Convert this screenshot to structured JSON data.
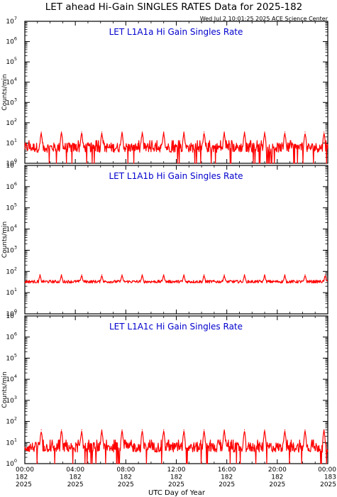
{
  "page": {
    "title": "LET ahead Hi-Gain SINGLES RATES Data for 2025-182",
    "timestamp": "Wed Jul  2 10:01:25 2025 ACE Science Center",
    "xlabel": "UTC Day of Year"
  },
  "colors": {
    "line": "#ff0000",
    "panel_title": "#0000cc",
    "axes": "#000000",
    "background": "#ffffff"
  },
  "chart_data": [
    {
      "type": "line",
      "title": "LET L1A1a Hi Gain Singles Rate",
      "ylabel": "Counts/min",
      "yscale": "log",
      "ylim": [
        1,
        10000000
      ],
      "y_tick_labels": [
        {
          "base": "10",
          "exp": "0"
        },
        {
          "base": "10",
          "exp": "1"
        },
        {
          "base": "10",
          "exp": "2"
        },
        {
          "base": "10",
          "exp": "3"
        },
        {
          "base": "10",
          "exp": "4"
        },
        {
          "base": "10",
          "exp": "5"
        },
        {
          "base": "10",
          "exp": "6"
        },
        {
          "base": "10",
          "exp": "7"
        }
      ],
      "x_unit": "hour UTC",
      "xlim": [
        0,
        24
      ],
      "baseline_counts": 6,
      "spike_peak_counts": 35,
      "spike_hours": [
        1.3,
        2.9,
        4.5,
        6.1,
        7.7,
        9.3,
        11.0,
        12.6,
        14.2,
        15.8,
        17.4,
        19.0,
        20.6,
        22.2,
        23.7
      ]
    },
    {
      "type": "line",
      "title": "LET L1A1b Hi Gain Singles Rate",
      "ylabel": "Counts/min",
      "yscale": "log",
      "ylim": [
        1,
        10000000
      ],
      "y_tick_labels": [
        {
          "base": "10",
          "exp": "0"
        },
        {
          "base": "10",
          "exp": "1"
        },
        {
          "base": "10",
          "exp": "2"
        },
        {
          "base": "10",
          "exp": "3"
        },
        {
          "base": "10",
          "exp": "4"
        },
        {
          "base": "10",
          "exp": "5"
        },
        {
          "base": "10",
          "exp": "6"
        },
        {
          "base": "10",
          "exp": "7"
        }
      ],
      "x_unit": "hour UTC",
      "xlim": [
        0,
        24
      ],
      "baseline_counts": 33,
      "spike_peak_counts": 70,
      "spike_hours": [
        1.2,
        2.9,
        4.5,
        6.1,
        7.7,
        9.3,
        11.0,
        12.6,
        14.2,
        15.8,
        17.4,
        19.0,
        20.6,
        22.2,
        23.8
      ]
    },
    {
      "type": "line",
      "title": "LET L1A1c Hi Gain Singles Rate",
      "ylabel": "Counts/min",
      "yscale": "log",
      "ylim": [
        1,
        10000000
      ],
      "y_tick_labels": [
        {
          "base": "10",
          "exp": "0"
        },
        {
          "base": "10",
          "exp": "1"
        },
        {
          "base": "10",
          "exp": "2"
        },
        {
          "base": "10",
          "exp": "3"
        },
        {
          "base": "10",
          "exp": "4"
        },
        {
          "base": "10",
          "exp": "5"
        },
        {
          "base": "10",
          "exp": "6"
        },
        {
          "base": "10",
          "exp": "7"
        }
      ],
      "x_unit": "hour UTC",
      "xlim": [
        0,
        24
      ],
      "baseline_counts": 6,
      "spike_peak_counts": 40,
      "spike_hours": [
        1.3,
        2.9,
        4.5,
        6.1,
        7.7,
        9.3,
        11.0,
        12.6,
        14.2,
        15.8,
        17.4,
        19.0,
        20.6,
        22.2,
        23.7
      ]
    }
  ],
  "x_ticks": [
    {
      "hour": 0,
      "time": "00:00",
      "doy": "182",
      "year": "2025"
    },
    {
      "hour": 4,
      "time": "04:00",
      "doy": "182",
      "year": "2025"
    },
    {
      "hour": 8,
      "time": "08:00",
      "doy": "182",
      "year": "2025"
    },
    {
      "hour": 12,
      "time": "12:00",
      "doy": "182",
      "year": "2025"
    },
    {
      "hour": 16,
      "time": "16:00",
      "doy": "182",
      "year": "2025"
    },
    {
      "hour": 20,
      "time": "20:00",
      "doy": "182",
      "year": "2025"
    },
    {
      "hour": 24,
      "time": "00:00",
      "doy": "183",
      "year": "2025"
    }
  ]
}
